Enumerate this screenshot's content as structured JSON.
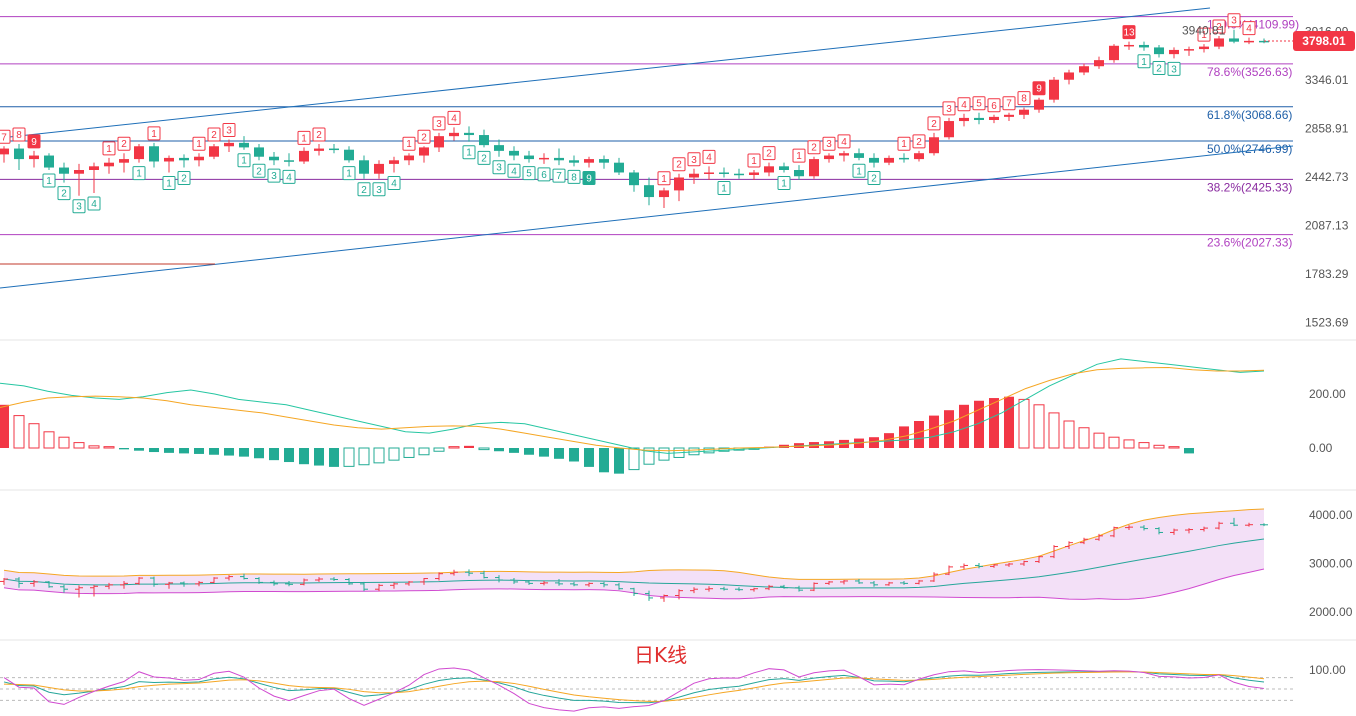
{
  "chart_data": {
    "type": "candlestick",
    "title": "日K线",
    "price_axis": {
      "ticks": [
        "3916.09",
        "3346.01",
        "2858.91",
        "2442.73",
        "2087.13",
        "1783.29",
        "1523.69"
      ],
      "scale": "log"
    },
    "last_price": "3798.01",
    "last_price_color": "#f23645",
    "annotation": "3940.81",
    "fibonacci": [
      {
        "label": "100.0%(4109.99)",
        "value": 4109.99,
        "color": "#b040c0"
      },
      {
        "label": "78.6%(3526.63)",
        "value": 3526.63,
        "color": "#b040c0"
      },
      {
        "label": "61.8%(3068.66)",
        "value": 3068.66,
        "color": "#1e5fa8"
      },
      {
        "label": "50.0%(2746.99)",
        "value": 2746.99,
        "color": "#1e5fa8"
      },
      {
        "label": "38.2%(2425.33)",
        "value": 2425.33,
        "color": "#8a2ba0"
      },
      {
        "label": "23.6%(2027.33)",
        "value": 2027.33,
        "color": "#b040c0"
      }
    ],
    "candles": [
      [
        2630,
        2700,
        2560,
        2680
      ],
      [
        2680,
        2720,
        2500,
        2590
      ],
      [
        2590,
        2660,
        2520,
        2620
      ],
      [
        2620,
        2640,
        2500,
        2520
      ],
      [
        2520,
        2560,
        2400,
        2470
      ],
      [
        2470,
        2550,
        2300,
        2500
      ],
      [
        2500,
        2560,
        2320,
        2530
      ],
      [
        2530,
        2600,
        2470,
        2560
      ],
      [
        2560,
        2640,
        2480,
        2590
      ],
      [
        2590,
        2720,
        2560,
        2700
      ],
      [
        2700,
        2730,
        2520,
        2570
      ],
      [
        2570,
        2620,
        2480,
        2600
      ],
      [
        2600,
        2630,
        2520,
        2580
      ],
      [
        2580,
        2640,
        2530,
        2610
      ],
      [
        2610,
        2720,
        2590,
        2700
      ],
      [
        2700,
        2760,
        2650,
        2730
      ],
      [
        2730,
        2790,
        2670,
        2690
      ],
      [
        2690,
        2720,
        2580,
        2610
      ],
      [
        2610,
        2650,
        2540,
        2580
      ],
      [
        2580,
        2640,
        2530,
        2570
      ],
      [
        2570,
        2690,
        2550,
        2660
      ],
      [
        2660,
        2720,
        2620,
        2680
      ],
      [
        2680,
        2720,
        2640,
        2670
      ],
      [
        2670,
        2700,
        2560,
        2580
      ],
      [
        2580,
        2620,
        2430,
        2470
      ],
      [
        2470,
        2580,
        2430,
        2550
      ],
      [
        2550,
        2610,
        2480,
        2580
      ],
      [
        2580,
        2640,
        2540,
        2620
      ],
      [
        2620,
        2700,
        2560,
        2690
      ],
      [
        2690,
        2820,
        2650,
        2790
      ],
      [
        2790,
        2870,
        2750,
        2820
      ],
      [
        2820,
        2880,
        2740,
        2800
      ],
      [
        2800,
        2850,
        2690,
        2710
      ],
      [
        2710,
        2760,
        2610,
        2660
      ],
      [
        2660,
        2700,
        2580,
        2620
      ],
      [
        2620,
        2660,
        2560,
        2590
      ],
      [
        2590,
        2640,
        2550,
        2600
      ],
      [
        2600,
        2680,
        2540,
        2580
      ],
      [
        2580,
        2620,
        2530,
        2560
      ],
      [
        2560,
        2610,
        2520,
        2590
      ],
      [
        2590,
        2620,
        2510,
        2560
      ],
      [
        2560,
        2600,
        2460,
        2480
      ],
      [
        2480,
        2500,
        2330,
        2380
      ],
      [
        2380,
        2440,
        2230,
        2290
      ],
      [
        2290,
        2360,
        2210,
        2340
      ],
      [
        2340,
        2470,
        2260,
        2440
      ],
      [
        2440,
        2510,
        2390,
        2470
      ],
      [
        2470,
        2530,
        2420,
        2480
      ],
      [
        2480,
        2520,
        2440,
        2470
      ],
      [
        2470,
        2510,
        2430,
        2460
      ],
      [
        2460,
        2500,
        2420,
        2480
      ],
      [
        2480,
        2560,
        2450,
        2530
      ],
      [
        2530,
        2560,
        2480,
        2500
      ],
      [
        2500,
        2540,
        2420,
        2450
      ],
      [
        2450,
        2610,
        2430,
        2590
      ],
      [
        2590,
        2640,
        2560,
        2620
      ],
      [
        2620,
        2660,
        2570,
        2640
      ],
      [
        2640,
        2680,
        2580,
        2600
      ],
      [
        2600,
        2640,
        2520,
        2560
      ],
      [
        2560,
        2620,
        2540,
        2600
      ],
      [
        2600,
        2640,
        2560,
        2590
      ],
      [
        2590,
        2660,
        2570,
        2640
      ],
      [
        2640,
        2820,
        2620,
        2780
      ],
      [
        2780,
        2960,
        2760,
        2930
      ],
      [
        2930,
        3000,
        2880,
        2960
      ],
      [
        2960,
        3010,
        2900,
        2940
      ],
      [
        2940,
        2990,
        2910,
        2970
      ],
      [
        2970,
        3010,
        2930,
        2990
      ],
      [
        2990,
        3060,
        2950,
        3040
      ],
      [
        3040,
        3160,
        3010,
        3140
      ],
      [
        3140,
        3380,
        3110,
        3350
      ],
      [
        3350,
        3460,
        3300,
        3430
      ],
      [
        3430,
        3530,
        3400,
        3500
      ],
      [
        3500,
        3610,
        3470,
        3570
      ],
      [
        3570,
        3760,
        3540,
        3740
      ],
      [
        3740,
        3790,
        3690,
        3750
      ],
      [
        3750,
        3790,
        3680,
        3720
      ],
      [
        3720,
        3750,
        3600,
        3640
      ],
      [
        3640,
        3720,
        3590,
        3690
      ],
      [
        3690,
        3730,
        3620,
        3700
      ],
      [
        3700,
        3760,
        3660,
        3730
      ],
      [
        3730,
        3860,
        3700,
        3830
      ],
      [
        3830,
        3940,
        3770,
        3790
      ],
      [
        3790,
        3840,
        3760,
        3800
      ],
      [
        3800,
        3830,
        3770,
        3798
      ]
    ],
    "td_labels_up": [
      {
        "i": 0,
        "t": "7"
      },
      {
        "i": 1,
        "t": "8"
      },
      {
        "i": 2,
        "t": "9",
        "filled": true
      },
      {
        "i": 7,
        "t": "1"
      },
      {
        "i": 8,
        "t": "2"
      },
      {
        "i": 10,
        "t": "1"
      },
      {
        "i": 13,
        "t": "1"
      },
      {
        "i": 14,
        "t": "2"
      },
      {
        "i": 15,
        "t": "3"
      },
      {
        "i": 20,
        "t": "1"
      },
      {
        "i": 21,
        "t": "2"
      },
      {
        "i": 27,
        "t": "1"
      },
      {
        "i": 28,
        "t": "2"
      },
      {
        "i": 29,
        "t": "3"
      },
      {
        "i": 30,
        "t": "4"
      },
      {
        "i": 44,
        "t": "1"
      },
      {
        "i": 45,
        "t": "2"
      },
      {
        "i": 46,
        "t": "3"
      },
      {
        "i": 47,
        "t": "4"
      },
      {
        "i": 50,
        "t": "1"
      },
      {
        "i": 51,
        "t": "2"
      },
      {
        "i": 53,
        "t": "1"
      },
      {
        "i": 54,
        "t": "2"
      },
      {
        "i": 55,
        "t": "3"
      },
      {
        "i": 56,
        "t": "4"
      },
      {
        "i": 60,
        "t": "1"
      },
      {
        "i": 61,
        "t": "2"
      },
      {
        "i": 62,
        "t": "2"
      },
      {
        "i": 63,
        "t": "3"
      },
      {
        "i": 64,
        "t": "4"
      },
      {
        "i": 65,
        "t": "5"
      },
      {
        "i": 66,
        "t": "6"
      },
      {
        "i": 67,
        "t": "7"
      },
      {
        "i": 68,
        "t": "8"
      },
      {
        "i": 69,
        "t": "9",
        "filled": true
      },
      {
        "i": 75,
        "t": "13",
        "filled": true
      },
      {
        "i": 80,
        "t": "1"
      },
      {
        "i": 81,
        "t": "2"
      },
      {
        "i": 82,
        "t": "3"
      },
      {
        "i": 83,
        "t": "4"
      }
    ],
    "td_labels_down": [
      {
        "i": 3,
        "t": "1"
      },
      {
        "i": 4,
        "t": "2"
      },
      {
        "i": 5,
        "t": "3"
      },
      {
        "i": 6,
        "t": "4"
      },
      {
        "i": 9,
        "t": "1"
      },
      {
        "i": 11,
        "t": "1"
      },
      {
        "i": 12,
        "t": "2"
      },
      {
        "i": 16,
        "t": "1"
      },
      {
        "i": 17,
        "t": "2"
      },
      {
        "i": 18,
        "t": "3"
      },
      {
        "i": 19,
        "t": "4"
      },
      {
        "i": 23,
        "t": "1"
      },
      {
        "i": 24,
        "t": "2"
      },
      {
        "i": 25,
        "t": "3"
      },
      {
        "i": 26,
        "t": "4"
      },
      {
        "i": 31,
        "t": "1"
      },
      {
        "i": 32,
        "t": "2"
      },
      {
        "i": 33,
        "t": "3"
      },
      {
        "i": 34,
        "t": "4"
      },
      {
        "i": 35,
        "t": "5"
      },
      {
        "i": 36,
        "t": "6"
      },
      {
        "i": 37,
        "t": "7"
      },
      {
        "i": 38,
        "t": "8"
      },
      {
        "i": 39,
        "t": "9",
        "filled": true
      },
      {
        "i": 48,
        "t": "1"
      },
      {
        "i": 52,
        "t": "1"
      },
      {
        "i": 57,
        "t": "1"
      },
      {
        "i": 58,
        "t": "2"
      },
      {
        "i": 76,
        "t": "1"
      },
      {
        "i": 77,
        "t": "2"
      },
      {
        "i": 78,
        "t": "3"
      }
    ],
    "macd": {
      "ticks": [
        "200.00",
        "0.00"
      ],
      "hist": [
        160,
        120,
        90,
        60,
        40,
        20,
        8,
        5,
        -5,
        -10,
        -15,
        -18,
        -20,
        -22,
        -25,
        -28,
        -32,
        -38,
        -45,
        -52,
        -60,
        -65,
        -70,
        -68,
        -62,
        -55,
        -45,
        -35,
        -25,
        -12,
        5,
        8,
        -6,
        -12,
        -18,
        -25,
        -32,
        -40,
        -50,
        -70,
        -90,
        -95,
        -80,
        -60,
        -45,
        -35,
        -25,
        -18,
        -12,
        -8,
        -5,
        5,
        12,
        18,
        22,
        25,
        30,
        35,
        40,
        55,
        80,
        100,
        120,
        140,
        160,
        175,
        185,
        190,
        180,
        160,
        130,
        100,
        75,
        55,
        40,
        30,
        20,
        10,
        5,
        -20
      ],
      "dif": [
        240,
        230,
        210,
        195,
        185,
        180,
        190,
        205,
        215,
        200,
        180,
        170,
        160,
        140,
        120,
        100,
        80,
        60,
        55,
        70,
        90,
        95,
        90,
        70,
        50,
        30,
        10,
        -10,
        -20,
        -15,
        -10,
        -5,
        0,
        5,
        10,
        15,
        20,
        25,
        30,
        40,
        60,
        90,
        130,
        180,
        230,
        270,
        310,
        330,
        320,
        310,
        300,
        290,
        280,
        285
      ],
      "dea": [
        150,
        170,
        185,
        190,
        192,
        190,
        185,
        175,
        160,
        150,
        140,
        130,
        115,
        100,
        85,
        75,
        70,
        75,
        80,
        82,
        80,
        70,
        55,
        40,
        25,
        10,
        0,
        -8,
        -10,
        -8,
        -4,
        0,
        2,
        5,
        8,
        12,
        18,
        28,
        45,
        70,
        100,
        140,
        180,
        220,
        250,
        275,
        290,
        295,
        297,
        298,
        290,
        285,
        285,
        288
      ],
      "dif_color": "#26c6a2",
      "dea_color": "#f5a623"
    },
    "boll": {
      "ticks": [
        "4000.00",
        "3000.00",
        "2000.00"
      ],
      "upper_color": "#f5a623",
      "mid_color": "#26a69a",
      "lower_color": "#d04ad0",
      "fill_color": "#f3e0f7"
    },
    "kdj": {
      "ticks": [
        "100.00"
      ]
    }
  }
}
